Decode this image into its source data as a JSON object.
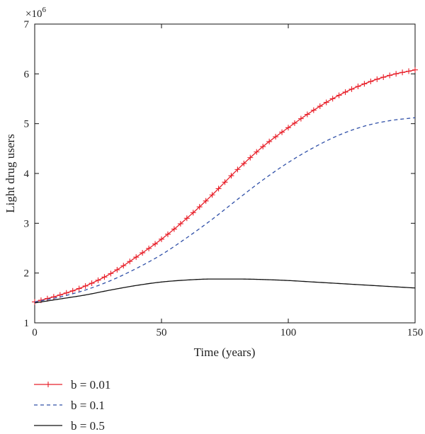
{
  "chart_data": {
    "type": "line",
    "title": "",
    "xlabel": "Time (years)",
    "ylabel": "Light drug users",
    "y_multiplier": "×10",
    "y_multiplier_exp": "6",
    "xlim": [
      0,
      150
    ],
    "ylim": [
      1,
      7
    ],
    "xticks": [
      0,
      50,
      100,
      150
    ],
    "yticks": [
      1,
      2,
      3,
      4,
      5,
      6,
      7
    ],
    "grid": false,
    "legend_position": "below",
    "x": [
      0,
      10,
      20,
      30,
      40,
      50,
      60,
      70,
      80,
      90,
      100,
      110,
      120,
      130,
      140,
      150
    ],
    "series": [
      {
        "name": "b = 0.01",
        "color": "#e8202a",
        "style": "solid-plus",
        "values": [
          1.42,
          1.56,
          1.74,
          1.99,
          2.32,
          2.68,
          3.1,
          3.57,
          4.08,
          4.54,
          4.92,
          5.27,
          5.57,
          5.8,
          5.97,
          6.08
        ]
      },
      {
        "name": "b = 0.1",
        "color": "#3050a8",
        "style": "dashed",
        "values": [
          1.42,
          1.52,
          1.66,
          1.85,
          2.09,
          2.37,
          2.71,
          3.08,
          3.48,
          3.87,
          4.22,
          4.52,
          4.77,
          4.95,
          5.06,
          5.12
        ]
      },
      {
        "name": "b = 0.5",
        "color": "#111111",
        "style": "solid",
        "values": [
          1.4,
          1.48,
          1.56,
          1.66,
          1.75,
          1.82,
          1.86,
          1.88,
          1.88,
          1.87,
          1.85,
          1.82,
          1.79,
          1.76,
          1.73,
          1.7
        ]
      }
    ]
  }
}
